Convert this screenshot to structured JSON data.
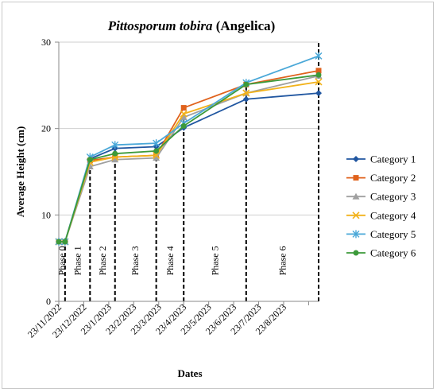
{
  "chart_data": {
    "type": "line",
    "title_italic": "Pittosporum tobira",
    "title_rest": " (Angelica)",
    "xlabel": "Dates",
    "ylabel": "Average Height (cm)",
    "ylim": [
      0,
      30
    ],
    "yticks": [
      "0",
      "10",
      "20",
      "30"
    ],
    "x_tick_labels": [
      "23/11/2022",
      "23/12/2022",
      "23/1/2023",
      "23/2/2023",
      "23/3/2023",
      "23/4/2023",
      "23/5/2023",
      "23/6/2023",
      "23/7/2023",
      "23/8/2023"
    ],
    "x_range": [
      0,
      10.4
    ],
    "x": [
      0,
      0.25,
      1.25,
      2.25,
      3.9,
      5.0,
      7.5,
      10.4
    ],
    "series": [
      {
        "name": "Category 1",
        "color": "#2056a0",
        "marker": "diamond",
        "values": [
          6.9,
          6.9,
          16.5,
          17.7,
          17.9,
          20.1,
          23.4,
          24.1
        ]
      },
      {
        "name": "Category 2",
        "color": "#e0621c",
        "marker": "square",
        "values": [
          6.9,
          6.9,
          16.3,
          16.7,
          16.9,
          22.4,
          25.1,
          26.7
        ]
      },
      {
        "name": "Category 3",
        "color": "#a0a0a0",
        "marker": "triangle",
        "values": [
          6.9,
          6.9,
          15.6,
          16.4,
          16.6,
          21.3,
          24.1,
          26.1
        ]
      },
      {
        "name": "Category 4",
        "color": "#f2b21a",
        "marker": "x",
        "values": [
          6.9,
          6.9,
          16.1,
          16.7,
          16.9,
          21.7,
          24.1,
          25.4
        ]
      },
      {
        "name": "Category 5",
        "color": "#4aa8d8",
        "marker": "star",
        "values": [
          6.9,
          6.9,
          16.7,
          18.1,
          18.3,
          20.6,
          25.3,
          28.4
        ]
      },
      {
        "name": "Category 6",
        "color": "#3c9a3a",
        "marker": "circle",
        "values": [
          6.9,
          6.9,
          16.4,
          17.1,
          17.4,
          20.3,
          25.1,
          26.2
        ]
      }
    ],
    "phase_boundaries_x": [
      0.25,
      1.25,
      2.25,
      3.9,
      5.0,
      7.5,
      10.4
    ],
    "phases": [
      {
        "label": "Phase 0",
        "x": 0.125
      },
      {
        "label": "Phase 1",
        "x": 0.75
      },
      {
        "label": "Phase 2",
        "x": 1.75
      },
      {
        "label": "Phase 3",
        "x": 3.05
      },
      {
        "label": "Phase 4",
        "x": 4.45
      },
      {
        "label": "Phase 5",
        "x": 6.25
      },
      {
        "label": "Phase 6",
        "x": 8.95
      }
    ],
    "grid": "horizontal",
    "legend_position": "right"
  }
}
